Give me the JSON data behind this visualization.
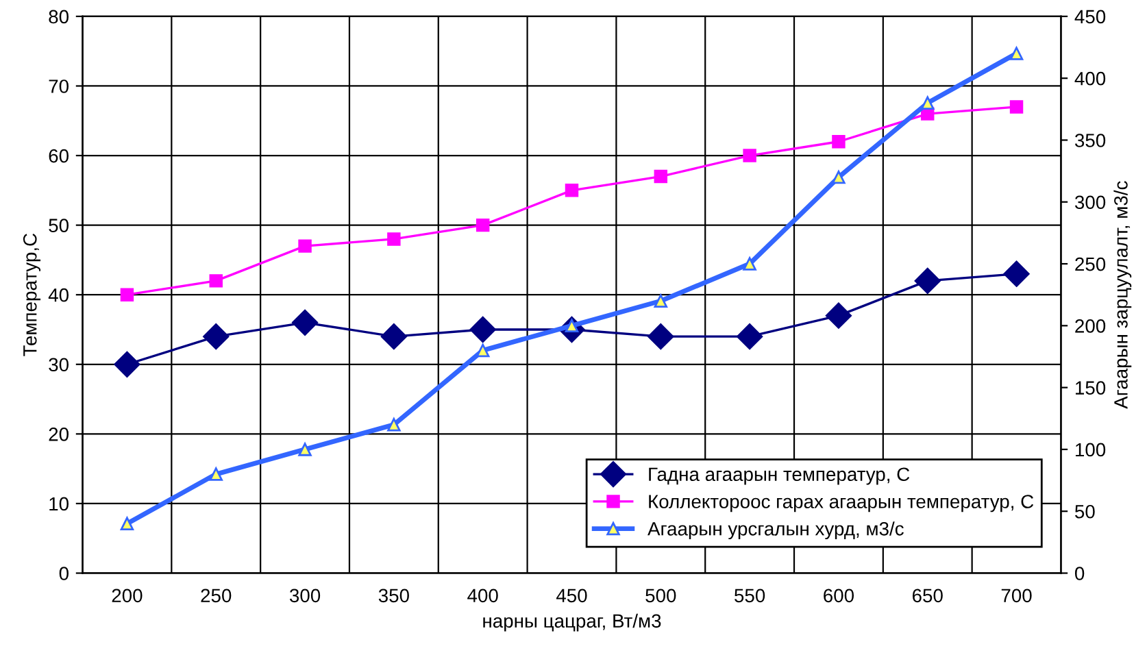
{
  "chart_data": {
    "type": "line",
    "xlabel": "нарны цацраг, Вт/м3",
    "ylabel": "Температур,С",
    "y2label": "Агаарын зарцуулалт, м3/с",
    "categories": [
      "200",
      "250",
      "300",
      "350",
      "400",
      "450",
      "500",
      "550",
      "600",
      "650",
      "700"
    ],
    "series": [
      {
        "name": "Гадна агаарын температур, С",
        "color": "#000080",
        "marker": "diamond",
        "values": [
          30,
          34,
          36,
          34,
          35,
          35,
          34,
          34,
          37,
          42,
          43
        ]
      },
      {
        "name": "Коллектороос гарах агаарын температур, С",
        "color": "#ff00ff",
        "marker": "square",
        "values": [
          40,
          42,
          47,
          48,
          50,
          55,
          57,
          60,
          62,
          66,
          67
        ]
      },
      {
        "name": "Агаарын урсгалын хурд, м3/с",
        "color": "#3366ff",
        "marker": "triangle",
        "axis": "y2",
        "values": [
          40,
          80,
          100,
          120,
          180,
          200,
          220,
          250,
          320,
          380,
          420
        ]
      }
    ],
    "ylim": [
      0,
      80
    ],
    "yticks": [
      0,
      10,
      20,
      30,
      40,
      50,
      60,
      70,
      80
    ],
    "y2lim": [
      0,
      450
    ],
    "y2ticks": [
      0,
      50,
      100,
      150,
      200,
      250,
      300,
      350,
      400,
      450
    ],
    "grid": true,
    "legend": "bottom right"
  }
}
